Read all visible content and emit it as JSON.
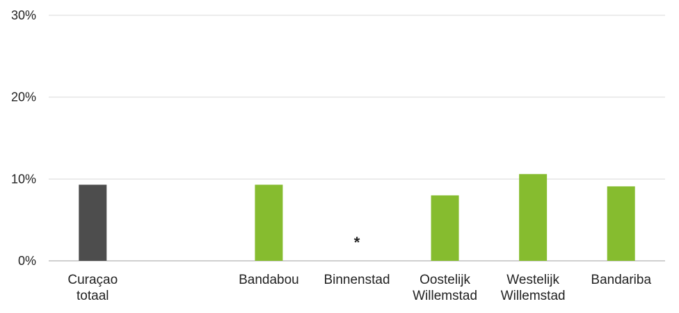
{
  "chart_data": {
    "type": "bar",
    "categories": [
      [
        "Curaçao",
        "totaal"
      ],
      [
        ""
      ],
      [
        "Bandabou"
      ],
      [
        "Binnenstad"
      ],
      [
        "Oostelijk",
        "Willemstad"
      ],
      [
        "Westelijk",
        "Willemstad"
      ],
      [
        "Bandariba"
      ]
    ],
    "values": [
      9.3,
      null,
      9.3,
      null,
      8.0,
      10.6,
      9.1
    ],
    "bar_colors": [
      "#4d4d4d",
      null,
      "#86bc2f",
      null,
      "#86bc2f",
      "#86bc2f",
      "#86bc2f"
    ],
    "annotations": [
      {
        "category_index": 3,
        "text": "*",
        "y": 2.7
      }
    ],
    "y_ticks": [
      "0%",
      "10%",
      "20%",
      "30%"
    ],
    "y_tick_values": [
      0,
      10,
      20,
      30
    ],
    "ylim": [
      0,
      30
    ],
    "grid": true,
    "legend": "none"
  }
}
